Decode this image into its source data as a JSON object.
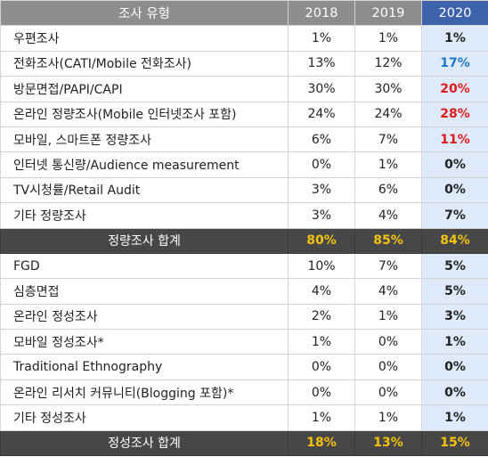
{
  "header": {
    "type_label": "조사 유형",
    "years": [
      "2018",
      "2019",
      "2020"
    ]
  },
  "quantitative": [
    {
      "name": "우편조사",
      "v2018": "1%",
      "v2019": "1%",
      "v2020": "1%",
      "accent": "none"
    },
    {
      "name": "전화조사(CATI/Mobile 전화조사)",
      "v2018": "13%",
      "v2019": "12%",
      "v2020": "17%",
      "accent": "blue"
    },
    {
      "name": "방문면접/PAPI/CAPI",
      "v2018": "30%",
      "v2019": "30%",
      "v2020": "20%",
      "accent": "red"
    },
    {
      "name": "온라인 정량조사(Mobile 인터넷조사 포함)",
      "v2018": "24%",
      "v2019": "24%",
      "v2020": "28%",
      "accent": "red"
    },
    {
      "name": "모바일, 스마트폰 정량조사",
      "v2018": "6%",
      "v2019": "7%",
      "v2020": "11%",
      "accent": "red"
    },
    {
      "name": "인터넷 통신량/Audience measurement",
      "v2018": "0%",
      "v2019": "1%",
      "v2020": "0%",
      "accent": "none"
    },
    {
      "name": "TV시청률/Retail Audit",
      "v2018": "3%",
      "v2019": "6%",
      "v2020": "0%",
      "accent": "none"
    },
    {
      "name": "기타 정량조사",
      "v2018": "3%",
      "v2019": "4%",
      "v2020": "7%",
      "accent": "none"
    }
  ],
  "quantitative_total": {
    "name": "정량조사 합계",
    "v2018": "80%",
    "v2019": "85%",
    "v2020": "84%"
  },
  "qualitative": [
    {
      "name": "FGD",
      "v2018": "10%",
      "v2019": "7%",
      "v2020": "5%"
    },
    {
      "name": "심층면접",
      "v2018": "4%",
      "v2019": "4%",
      "v2020": "5%"
    },
    {
      "name": "온라인 정성조사",
      "v2018": "2%",
      "v2019": "1%",
      "v2020": "3%"
    },
    {
      "name": "모바일 정성조사*",
      "v2018": "1%",
      "v2019": "0%",
      "v2020": "1%"
    },
    {
      "name": "Traditional Ethnography",
      "v2018": "0%",
      "v2019": "0%",
      "v2020": "0%"
    },
    {
      "name": "온라인 리서치 커뮤니티(Blogging 포함)*",
      "v2018": "0%",
      "v2019": "0%",
      "v2020": "0%"
    },
    {
      "name": "기타 정성조사",
      "v2018": "1%",
      "v2019": "1%",
      "v2020": "1%"
    }
  ],
  "qualitative_total": {
    "name": "정성조사 합계",
    "v2018": "18%",
    "v2019": "13%",
    "v2020": "15%"
  },
  "colors": {
    "header_gray": "#8d8d8d",
    "header_2020": "#3f62ad",
    "highlight_col": "#deeafa",
    "increase_blue": "#1f79c6",
    "change_red": "#e11b1b",
    "total_row": "#474747",
    "total_value_gold": "#f4c20d"
  }
}
